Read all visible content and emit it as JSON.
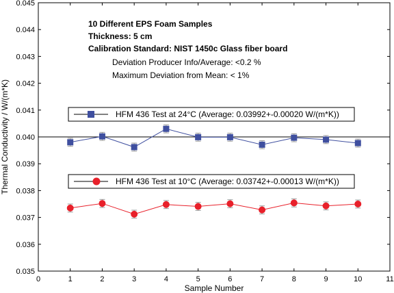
{
  "chart_data": {
    "type": "line",
    "xlabel": "Sample Number",
    "ylabel": "Thermal Conductivity / W/(m*K)",
    "xlim": [
      0,
      11
    ],
    "ylim": [
      0.035,
      0.045
    ],
    "x_ticks": [
      0,
      1,
      2,
      3,
      4,
      5,
      6,
      7,
      8,
      9,
      10,
      11
    ],
    "y_ticks": [
      "0.035",
      "0.036",
      "0.037",
      "0.038",
      "0.039",
      "0.040",
      "0.041",
      "0.042",
      "0.043",
      "0.044",
      "0.045"
    ],
    "grid": false,
    "reference_line": 0.04,
    "annotations": [
      "10 Different EPS Foam Samples",
      "Thickness: 5 cm",
      "Calibration Standard: NIST 1450c Glass fiber board",
      "Deviation Producer Info/Average: <0.2 %",
      "Maximum Deviation from Mean: < 1%"
    ],
    "series": [
      {
        "name": "HFM 436 Test at 24°C (Average: 0.03992+-0.00020 W/(m*K))",
        "color": "#3f4f9f",
        "marker": "square",
        "x": [
          1,
          2,
          3,
          4,
          5,
          6,
          7,
          8,
          9,
          10
        ],
        "y": [
          0.0398,
          0.04002,
          0.03962,
          0.0403,
          0.03999,
          0.03999,
          0.03971,
          0.03997,
          0.0399,
          0.03977
        ],
        "error": 0.00015
      },
      {
        "name": "HFM 436 Test at 10°C (Average: 0.03742+-0.00013 W/(m*K))",
        "color": "#e8202a",
        "marker": "circle",
        "x": [
          1,
          2,
          3,
          4,
          5,
          6,
          7,
          8,
          9,
          10
        ],
        "y": [
          0.03735,
          0.03752,
          0.03712,
          0.03748,
          0.03741,
          0.03751,
          0.03728,
          0.03754,
          0.03743,
          0.0375
        ],
        "error": 0.00015
      }
    ]
  }
}
